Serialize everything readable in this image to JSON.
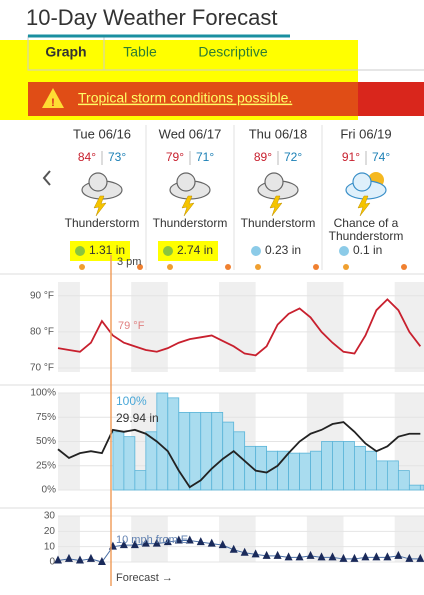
{
  "title": "10-Day Weather Forecast",
  "tabs": [
    "Graph",
    "Table",
    "Descriptive"
  ],
  "alert": "Tropical storm conditions possible.",
  "days": [
    {
      "date": "Tue 06/16",
      "high": "84°",
      "low": "73°",
      "condition": "Thunderstorm",
      "precip": "1.31 in"
    },
    {
      "date": "Wed 06/17",
      "high": "79°",
      "low": "71°",
      "condition": "Thunderstorm",
      "precip": "2.74 in"
    },
    {
      "date": "Thu 06/18",
      "high": "89°",
      "low": "72°",
      "condition": "Thunderstorm",
      "precip": "0.23 in"
    },
    {
      "date": "Fri 06/19",
      "high": "91°",
      "low": "74°",
      "condition": "Chance of a Thunderstorm",
      "precip": "0.1 in"
    }
  ],
  "current_time_label": "3 pm",
  "temperature_chart": {
    "type": "line",
    "color": "#c8202e",
    "xlim": [
      0,
      100
    ],
    "ylim": [
      68.9,
      93.8
    ],
    "yticks": [
      {
        "value": 90,
        "label": "90 °F"
      },
      {
        "value": 80,
        "label": "80 °F"
      },
      {
        "value": 70,
        "label": "70 °F"
      }
    ],
    "x": [
      0,
      3,
      6,
      9,
      12,
      15,
      18,
      21,
      24,
      27,
      30,
      33,
      36,
      39,
      42,
      45,
      48,
      51,
      54,
      57,
      60,
      63,
      66,
      69,
      72,
      75,
      78,
      81,
      84,
      87,
      90,
      93,
      96,
      99
    ],
    "values": [
      75.5,
      75,
      74.5,
      77,
      83,
      79,
      77,
      76,
      75,
      74.5,
      75.5,
      77,
      78,
      78.5,
      79,
      77.5,
      76,
      74,
      73.5,
      76,
      82,
      85,
      86.5,
      84,
      80,
      77,
      74.5,
      74,
      79,
      86,
      89,
      86,
      80,
      76
    ],
    "annotation": "79 °F"
  },
  "precip_chart": {
    "type": "bar",
    "color": "#a9dcef",
    "xlim": [
      0,
      100
    ],
    "ylim": [
      0,
      100
    ],
    "yticks": [
      {
        "value": 100,
        "label": "100%"
      },
      {
        "value": 75,
        "label": "75%"
      },
      {
        "value": 50,
        "label": "50%"
      },
      {
        "value": 25,
        "label": "25%"
      },
      {
        "value": 0,
        "label": "0%"
      }
    ],
    "x": [
      15,
      18,
      21,
      24,
      27,
      30,
      33,
      36,
      39,
      42,
      45,
      48,
      51,
      54,
      57,
      60,
      63,
      66,
      69,
      72,
      75,
      78,
      81,
      84,
      87,
      90,
      93,
      96,
      99
    ],
    "values": [
      60,
      55,
      20,
      60,
      100,
      95,
      80,
      80,
      80,
      80,
      70,
      60,
      45,
      45,
      40,
      40,
      38,
      38,
      40,
      50,
      50,
      50,
      45,
      40,
      30,
      30,
      20,
      5,
      5
    ],
    "line": {
      "color": "#222222",
      "x": [
        0,
        3,
        6,
        9,
        12,
        15,
        18,
        21,
        24,
        27,
        30,
        33,
        36,
        39,
        42,
        45,
        48,
        51,
        54,
        57,
        60,
        63,
        66,
        69,
        72,
        75,
        78,
        81,
        84,
        87,
        90,
        93,
        96,
        99
      ],
      "values": [
        42,
        33,
        38,
        40,
        38,
        62,
        60,
        62,
        58,
        50,
        40,
        20,
        3,
        10,
        22,
        32,
        40,
        30,
        20,
        18,
        25,
        38,
        50,
        58,
        62,
        68,
        70,
        60,
        48,
        40,
        45,
        55,
        58,
        58
      ]
    },
    "annotations": [
      "100%",
      "29.94 in"
    ]
  },
  "wind_chart": {
    "type": "line",
    "color": "#4a6fa5",
    "xlim": [
      0,
      100
    ],
    "ylim": [
      0,
      30
    ],
    "yticks": [
      30,
      20,
      10,
      0
    ],
    "x": [
      0,
      3,
      6,
      9,
      12,
      15,
      18,
      21,
      24,
      27,
      30,
      33,
      36,
      39,
      42,
      45,
      48,
      51,
      54,
      57,
      60,
      63,
      66,
      69,
      72,
      75,
      78,
      81,
      84,
      87,
      90,
      93,
      96,
      99
    ],
    "values": [
      1,
      2,
      1,
      2,
      0,
      10,
      11,
      11,
      12,
      12,
      13,
      14,
      14,
      13,
      12,
      11,
      8,
      6,
      5,
      4,
      4,
      3,
      3,
      4,
      3,
      3,
      2,
      2,
      3,
      3,
      3,
      4,
      2,
      2
    ],
    "annotation": "10 mph from E"
  },
  "forecast_label": "Forecast →"
}
